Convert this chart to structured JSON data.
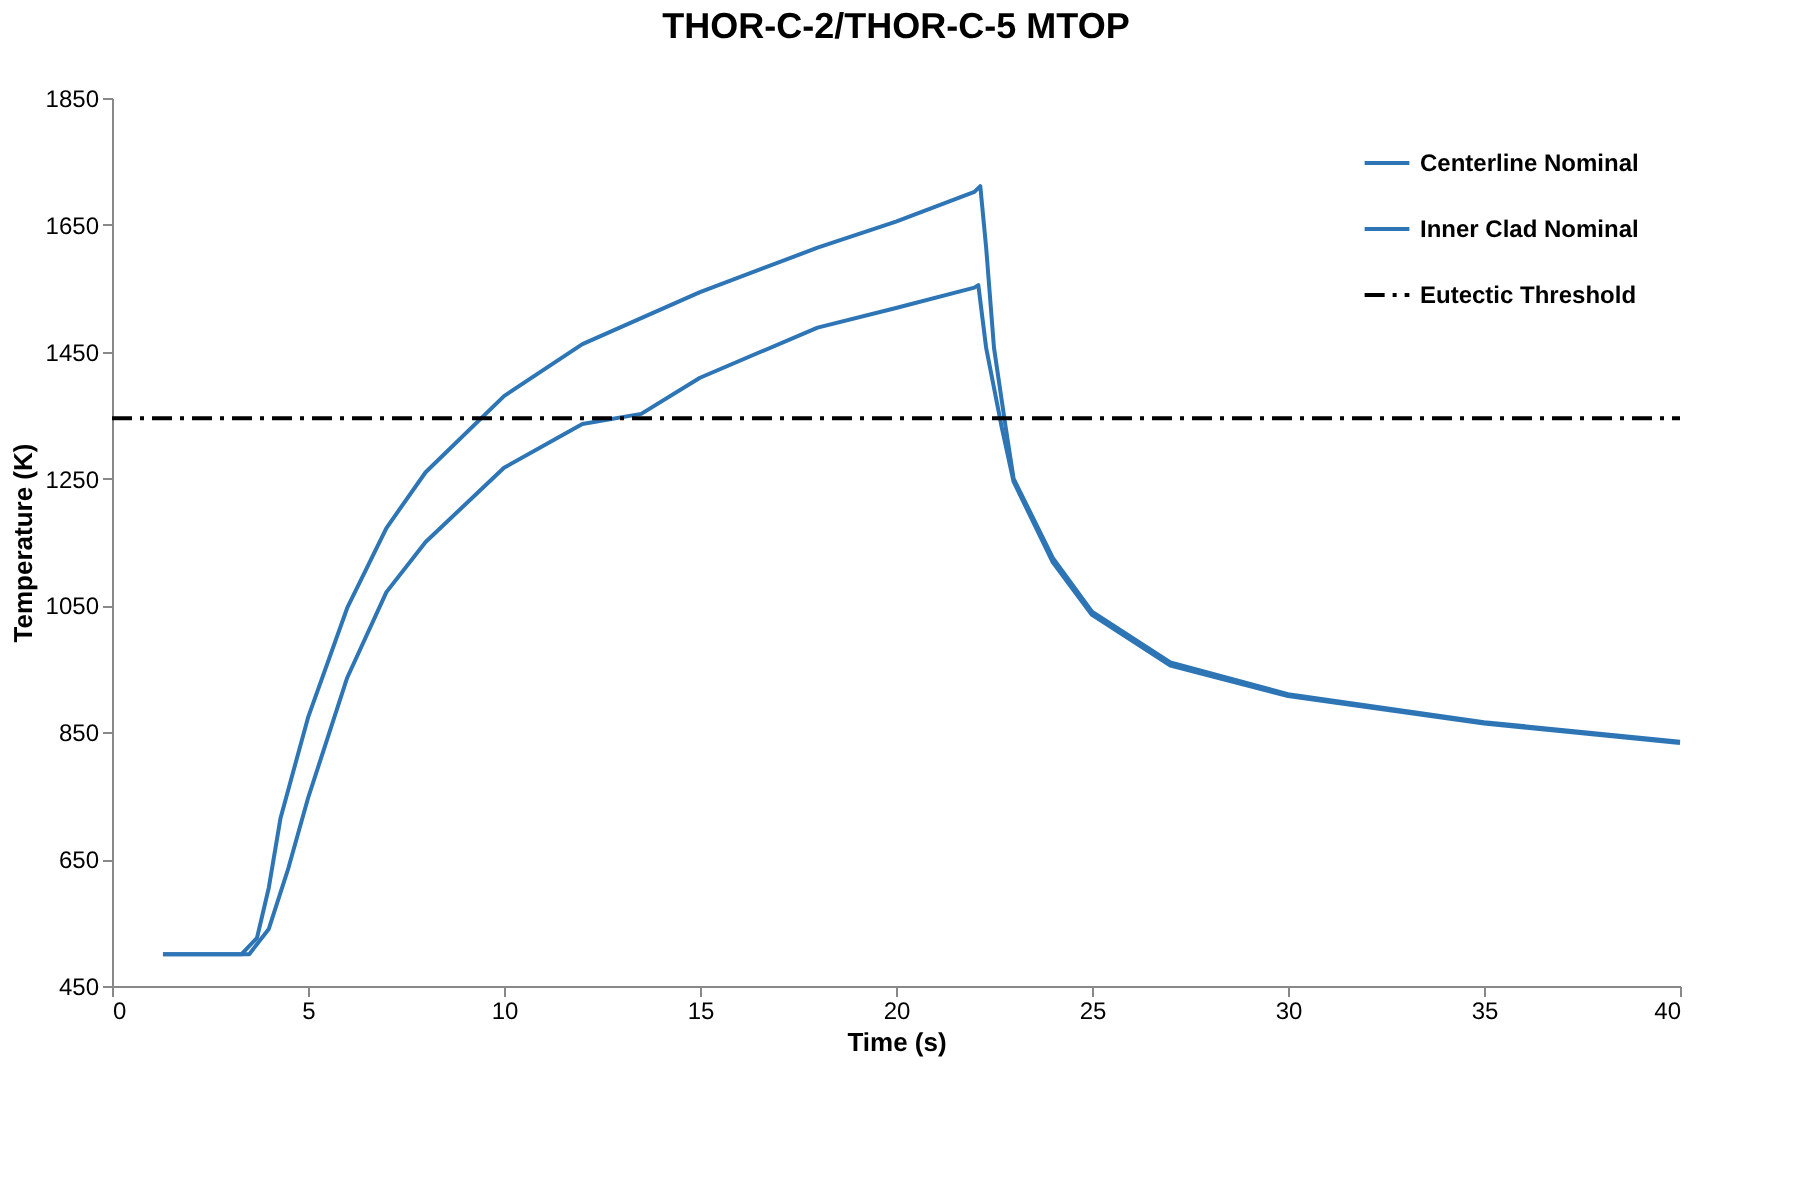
{
  "chart_data": {
    "type": "line",
    "title": "THOR-C-2/THOR-C-5 MTOP",
    "xlabel": "Time (s)",
    "ylabel": "Temperature (K)",
    "xlim": [
      0,
      40
    ],
    "xticks": [
      0,
      5,
      10,
      15,
      20,
      25,
      30,
      35,
      40
    ],
    "ylim": [
      450,
      1850
    ],
    "yticks": [
      450,
      650,
      850,
      1050,
      1250,
      1450,
      1650,
      1850
    ],
    "grid": false,
    "legend": "top right",
    "marker": "none",
    "series": [
      {
        "name": "Centerline Nominal",
        "color": "#2e75b6",
        "line_style": "solid",
        "x": [
          1.3,
          3.3,
          3.7,
          4.0,
          4.3,
          5,
          6,
          7,
          8,
          10,
          12,
          15,
          18,
          20,
          22,
          22.15,
          22.3,
          22.5,
          22.8,
          23,
          24,
          25,
          27,
          30,
          35,
          40
        ],
        "values": [
          500,
          500,
          526,
          605,
          715,
          873,
          1046,
          1172,
          1260,
          1380,
          1462,
          1544,
          1614,
          1655,
          1702,
          1711,
          1614,
          1456,
          1330,
          1250,
          1125,
          1040,
          960,
          910,
          866,
          835
        ]
      },
      {
        "name": "Inner Clad Nominal",
        "color": "#2e75b6",
        "line_style": "solid",
        "x": [
          1.3,
          3.5,
          4.0,
          4.5,
          5,
          6,
          7,
          8,
          10,
          12,
          13.5,
          15,
          18,
          20,
          22,
          22.1,
          22.3,
          22.7,
          23,
          24,
          25,
          27,
          30,
          35,
          40
        ],
        "values": [
          500,
          500,
          540,
          636,
          746,
          936,
          1071,
          1150,
          1267,
          1336,
          1352,
          1409,
          1488,
          1519,
          1551,
          1555,
          1456,
          1330,
          1245,
          1118,
          1035,
          955,
          907,
          864,
          833
        ]
      },
      {
        "name": "Eutectic Threshold",
        "color": "#000000",
        "line_style": "dashdot",
        "x": [
          0,
          40
        ],
        "values": [
          1345,
          1345
        ]
      }
    ]
  }
}
